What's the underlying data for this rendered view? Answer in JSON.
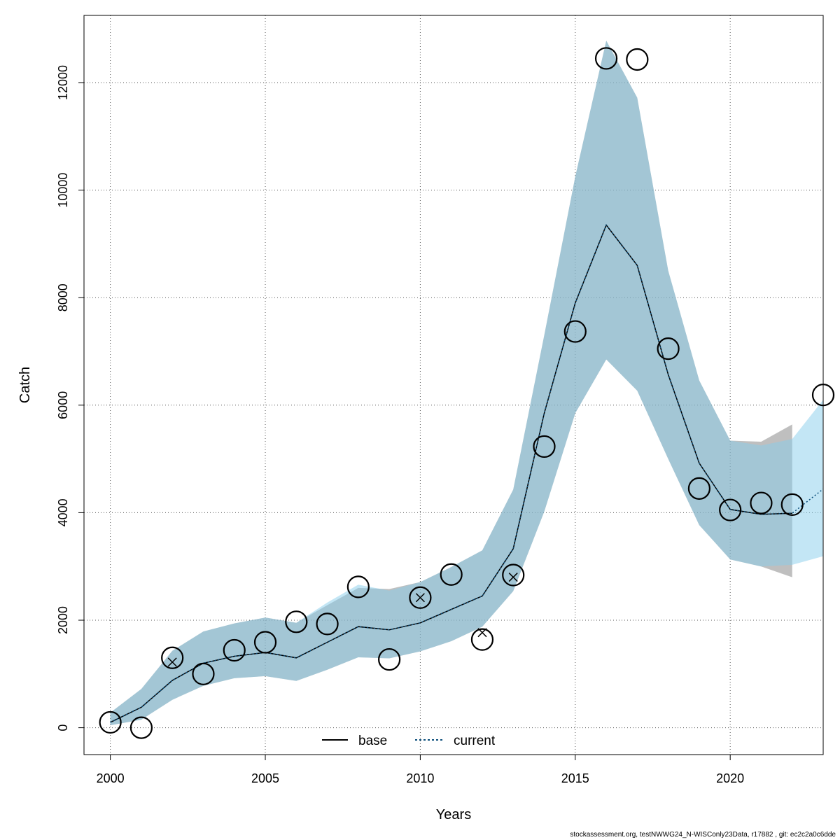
{
  "chart_data": {
    "type": "line",
    "xlabel": "Years",
    "ylabel": "Catch",
    "xlim": [
      1999.15,
      2023
    ],
    "ylim": [
      -500,
      13250
    ],
    "x_ticks": [
      2000,
      2005,
      2010,
      2015,
      2020
    ],
    "y_ticks": [
      0,
      2000,
      4000,
      6000,
      8000,
      10000,
      12000
    ],
    "grid": true,
    "legend_position": "bottom-center",
    "colors": {
      "base_band": "#7f7f7f",
      "current_band": "#87ceeb",
      "current_line": "#0a4d7a",
      "base_line": "#000000",
      "points": "#000000"
    },
    "series": [
      {
        "name": "base",
        "style": "solid",
        "years": [
          2000,
          2001,
          2002,
          2003,
          2004,
          2005,
          2006,
          2007,
          2008,
          2009,
          2010,
          2011,
          2012,
          2013,
          2014,
          2015,
          2016,
          2017,
          2018,
          2019,
          2020,
          2021,
          2022
        ],
        "values": [
          100,
          380,
          880,
          1200,
          1330,
          1400,
          1300,
          1590,
          1880,
          1820,
          1950,
          2200,
          2450,
          3330,
          5850,
          7900,
          9350,
          8600,
          6570,
          4920,
          4060,
          3970,
          3990
        ],
        "lower": [
          45,
          150,
          520,
          780,
          920,
          960,
          870,
          1080,
          1310,
          1290,
          1420,
          1610,
          1880,
          2540,
          4020,
          5850,
          6850,
          6270,
          5000,
          3770,
          3130,
          3000,
          2800
        ],
        "upper": [
          280,
          720,
          1430,
          1790,
          1940,
          2050,
          1950,
          2280,
          2600,
          2580,
          2710,
          2990,
          3300,
          4430,
          7300,
          10250,
          12780,
          11720,
          8500,
          6460,
          5340,
          5320,
          5640
        ]
      },
      {
        "name": "current",
        "style": "dashed",
        "years": [
          2000,
          2001,
          2002,
          2003,
          2004,
          2005,
          2006,
          2007,
          2008,
          2009,
          2010,
          2011,
          2012,
          2013,
          2014,
          2015,
          2016,
          2017,
          2018,
          2019,
          2020,
          2021,
          2022,
          2023
        ],
        "values": [
          100,
          380,
          880,
          1200,
          1330,
          1400,
          1300,
          1590,
          1880,
          1820,
          1950,
          2200,
          2450,
          3330,
          5850,
          7900,
          9350,
          8600,
          6570,
          4920,
          4060,
          3970,
          3990,
          4440
        ],
        "lower": [
          45,
          150,
          520,
          780,
          920,
          960,
          870,
          1080,
          1310,
          1290,
          1420,
          1610,
          1880,
          2540,
          4020,
          5850,
          6850,
          6270,
          5000,
          3770,
          3130,
          3000,
          3030,
          3190
        ],
        "upper": [
          280,
          720,
          1430,
          1790,
          1940,
          2050,
          1950,
          2330,
          2660,
          2550,
          2710,
          2990,
          3300,
          4430,
          7300,
          10250,
          12780,
          11720,
          8500,
          6460,
          5340,
          5250,
          5370,
          6100
        ]
      }
    ],
    "observed": {
      "years": [
        2000,
        2001,
        2002,
        2003,
        2004,
        2005,
        2006,
        2007,
        2008,
        2009,
        2010,
        2011,
        2012,
        2013,
        2014,
        2015,
        2016,
        2017,
        2018,
        2019,
        2020,
        2021,
        2022,
        2023
      ],
      "values": [
        100,
        0,
        1300,
        1000,
        1440,
        1590,
        1970,
        1930,
        2620,
        1270,
        2420,
        2850,
        1640,
        2840,
        5230,
        7370,
        12450,
        12430,
        7050,
        4450,
        4050,
        4180,
        4150,
        6190
      ]
    },
    "crosses": {
      "years": [
        2002,
        2010,
        2012,
        2013
      ],
      "values": [
        1220,
        2420,
        1770,
        2800
      ]
    }
  },
  "footer": "stockassessment.org, testNWWG24_N-WISConly23Data, r17882 , git: ec2c2a0c6dde"
}
